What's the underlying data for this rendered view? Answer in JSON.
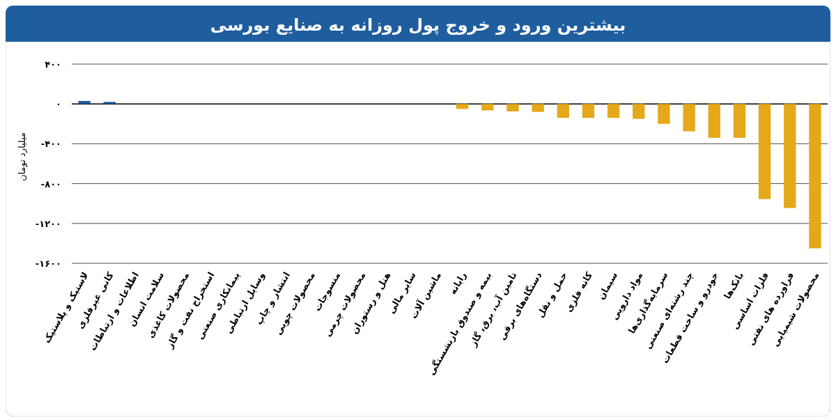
{
  "chart_data": {
    "type": "bar",
    "title": "بیشترین ورود و خروج پول روزانه به صنایع بورسی",
    "ylabel": "میلیارد تومان",
    "categories": [
      "لاستیک و پلاستیک",
      "کانی غیرفلزی",
      "اطلاعات و ارتباطات",
      "سلامت انسان",
      "محصولات کاغذی",
      "استخراج نفت و گاز",
      "پیمانکاری صنعتی",
      "وسایل ارتباطی",
      "انتشار و چاپ",
      "محصولات چوبی",
      "منسوجات",
      "محصولات چرمی",
      "هتل و رستوران",
      "سایر مالی",
      "ماشین آلات",
      "رایانه",
      "بیمه و صندوق بازنشستگی",
      "تامین آب، برق، گاز",
      "دستگاه‌های برقی",
      "حمل و نقل",
      "کانه فلزی",
      "سیمان",
      "مواد دارویی",
      "سرمایه‌گذاری‌ها",
      "چند رشته‌ای صنعتی",
      "خودرو و ساخت قطعات",
      "بانک‌ها",
      "فلزات اساسی",
      "فراورده های نفتی",
      "محصولات شیمیایی"
    ],
    "values": [
      30,
      20,
      0,
      0,
      0,
      0,
      0,
      0,
      0,
      0,
      0,
      0,
      0,
      0,
      0,
      -50,
      -65,
      -75,
      -80,
      -140,
      -140,
      -140,
      -150,
      -200,
      -275,
      -340,
      -340,
      -955,
      -1045,
      -1450
    ],
    "colors": [
      "#1f5e9e",
      "#1f5e9e",
      "#e5a819",
      "#e5a819",
      "#e5a819",
      "#e5a819",
      "#e5a819",
      "#e5a819",
      "#e5a819",
      "#e5a819",
      "#e5a819",
      "#e5a819",
      "#e5a819",
      "#e5a819",
      "#e5a819",
      "#e5a819",
      "#e5a819",
      "#e5a819",
      "#e5a819",
      "#e5a819",
      "#e5a819",
      "#e5a819",
      "#e5a819",
      "#e5a819",
      "#e5a819",
      "#e5a819",
      "#e5a819",
      "#e5a819",
      "#e5a819",
      "#e5a819"
    ],
    "ylim": [
      -1600,
      400
    ],
    "yticks": [
      {
        "value": 400,
        "label": "۴۰۰"
      },
      {
        "value": 0,
        "label": "۰"
      },
      {
        "value": -400,
        "label": "-۴۰۰"
      },
      {
        "value": -800,
        "label": "-۸۰۰"
      },
      {
        "value": -1200,
        "label": "-۱۲۰۰"
      },
      {
        "value": -1600,
        "label": "-۱۶۰۰"
      }
    ],
    "grid": "y"
  }
}
